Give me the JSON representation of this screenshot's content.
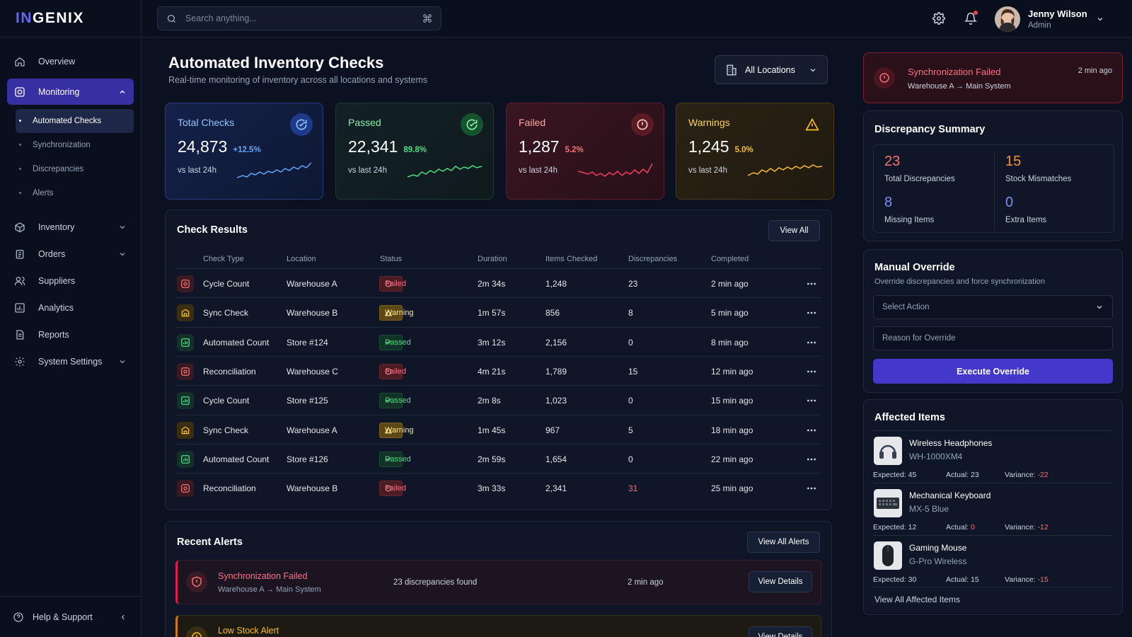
{
  "app": {
    "logo_accent": "IN",
    "logo_rest": "GENIX"
  },
  "sidebar": {
    "items": [
      {
        "label": "Overview",
        "icon": "home-icon"
      },
      {
        "label": "Monitoring",
        "icon": "monitor-icon",
        "expanded": true
      },
      {
        "label": "Inventory",
        "icon": "box-icon"
      },
      {
        "label": "Orders",
        "icon": "clipboard-icon"
      },
      {
        "label": "Suppliers",
        "icon": "users-icon"
      },
      {
        "label": "Analytics",
        "icon": "chart-icon"
      },
      {
        "label": "Reports",
        "icon": "document-icon"
      },
      {
        "label": "System Settings",
        "icon": "gear-icon"
      }
    ],
    "monitoring_sub": [
      "Automated Checks",
      "Synchronization",
      "Discrepancies",
      "Alerts"
    ],
    "active_sub": "Automated Checks",
    "help": "Help & Support"
  },
  "topbar": {
    "search_placeholder": "Search anything...",
    "user": {
      "name": "Jenny Wilson",
      "role": "Admin"
    }
  },
  "page": {
    "title": "Automated Inventory Checks",
    "subtitle": "Real-time monitoring of inventory across all locations and systems",
    "location_filter": "All Locations"
  },
  "stats": [
    {
      "title": "Total Checks",
      "value": "24,873",
      "pct": "+12.5%",
      "compare": "vs last 24h",
      "color": "#60a5fa"
    },
    {
      "title": "Passed",
      "value": "22,341",
      "pct": "89.8%",
      "compare": "vs last 24h",
      "color": "#4ade80"
    },
    {
      "title": "Failed",
      "value": "1,287",
      "pct": "5.2%",
      "compare": "vs last 24h",
      "color": "#f43f5e"
    },
    {
      "title": "Warnings",
      "value": "1,245",
      "pct": "5.0%",
      "compare": "vs last 24h",
      "color": "#fbbf24"
    }
  ],
  "check_results": {
    "title": "Check Results",
    "view_all": "View All",
    "columns": [
      "Check Type",
      "Location",
      "Status",
      "Duration",
      "Items Checked",
      "Discrepancies",
      "Completed"
    ],
    "rows": [
      {
        "type": "Cycle Count",
        "kind": "red",
        "location": "Warehouse A",
        "status": "Failed",
        "duration": "2m 34s",
        "items": "1,248",
        "disc": "23",
        "completed": "2 min ago"
      },
      {
        "type": "Sync Check",
        "kind": "amber",
        "location": "Warehouse B",
        "status": "Warning",
        "duration": "1m 57s",
        "items": "856",
        "disc": "8",
        "completed": "5 min ago"
      },
      {
        "type": "Automated Count",
        "kind": "green",
        "location": "Store #124",
        "status": "Passed",
        "duration": "3m 12s",
        "items": "2,156",
        "disc": "0",
        "completed": "8 min ago"
      },
      {
        "type": "Reconciliation",
        "kind": "red",
        "location": "Warehouse C",
        "status": "Failed",
        "duration": "4m 21s",
        "items": "1,789",
        "disc": "15",
        "completed": "12 min ago"
      },
      {
        "type": "Cycle Count",
        "kind": "green",
        "location": "Store #125",
        "status": "Passed",
        "duration": "2m 8s",
        "items": "1,023",
        "disc": "0",
        "completed": "15 min ago"
      },
      {
        "type": "Sync Check",
        "kind": "amber",
        "location": "Warehouse A",
        "status": "Warning",
        "duration": "1m 45s",
        "items": "967",
        "disc": "5",
        "completed": "18 min ago"
      },
      {
        "type": "Automated Count",
        "kind": "green",
        "location": "Store #126",
        "status": "Passed",
        "duration": "2m 59s",
        "items": "1,654",
        "disc": "0",
        "completed": "22 min ago"
      },
      {
        "type": "Reconciliation",
        "kind": "red",
        "location": "Warehouse B",
        "status": "Failed",
        "duration": "3m 33s",
        "items": "2,341",
        "disc": "31",
        "completed": "25 min ago"
      }
    ]
  },
  "recent_alerts": {
    "title": "Recent Alerts",
    "view_all": "View All Alerts",
    "items": [
      {
        "title": "Synchronization Failed",
        "sub": "Warehouse A → Main System",
        "desc": "23 discrepancies found",
        "time": "2 min ago",
        "action": "View Details"
      },
      {
        "title": "Low Stock Alert",
        "sub": "",
        "desc": "",
        "time": "",
        "action": "View Details"
      }
    ]
  },
  "sync_alert": {
    "title": "Synchronization Failed",
    "sub": "Warehouse A → Main System",
    "time": "2 min ago"
  },
  "discrepancy_summary": {
    "title": "Discrepancy Summary",
    "cells": [
      {
        "value": "23",
        "label": "Total Discrepancies",
        "color": "#f87171"
      },
      {
        "value": "15",
        "label": "Stock Mismatches",
        "color": "#fb923c"
      },
      {
        "value": "8",
        "label": "Missing Items",
        "color": "#818cf8"
      },
      {
        "value": "0",
        "label": "Extra Items",
        "color": "#818cf8"
      }
    ]
  },
  "manual_override": {
    "title": "Manual Override",
    "subtitle": "Override discrepancies and force synchronization",
    "select_placeholder": "Select Action",
    "reason_placeholder": "Reason for Override",
    "button": "Execute Override"
  },
  "affected_items": {
    "title": "Affected Items",
    "labels": {
      "expected": "Expected:",
      "actual": "Actual:",
      "variance": "Variance:"
    },
    "items": [
      {
        "name": "Wireless Headphones",
        "model": "WH-1000XM4",
        "expected": "45",
        "actual": "23",
        "variance": "-22",
        "image": "headphones-image"
      },
      {
        "name": "Mechanical Keyboard",
        "model": "MX-5 Blue",
        "expected": "12",
        "actual": "0",
        "variance": "-12",
        "image": "keyboard-image"
      },
      {
        "name": "Gaming Mouse",
        "model": "G-Pro Wireless",
        "expected": "30",
        "actual": "15",
        "variance": "-15",
        "image": "mouse-image"
      }
    ],
    "view_all": "View All Affected Items"
  }
}
